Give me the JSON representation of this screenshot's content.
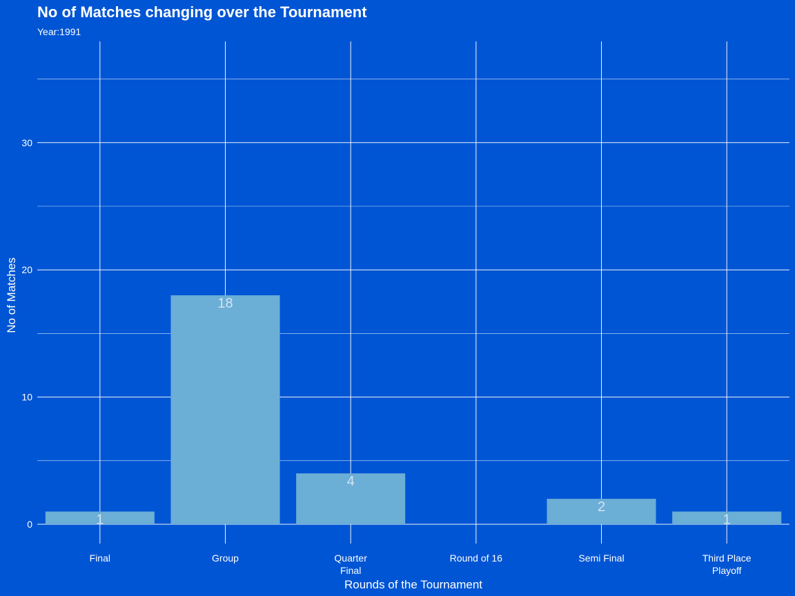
{
  "colors": {
    "background": "#0055D4",
    "bar": "#6BAED6",
    "grid": "#FFFFFF",
    "text": "#FFFFFF",
    "bar_label": "#D6E4F0"
  },
  "chart_data": {
    "type": "bar",
    "title": "No of Matches changing over the Tournament",
    "subtitle": "Year:1991",
    "xlabel": "Rounds of the Tournament",
    "ylabel": "No of Matches",
    "categories": [
      [
        "Final"
      ],
      [
        "Group"
      ],
      [
        "Quarter",
        "Final"
      ],
      [
        "Round of 16"
      ],
      [
        "Semi Final"
      ],
      [
        "Third Place",
        "Playoff"
      ]
    ],
    "values": [
      1,
      18,
      4,
      0,
      2,
      1
    ],
    "data_labels": [
      "1",
      "18",
      "4",
      "",
      "2",
      "1"
    ],
    "yticks": [
      0,
      10,
      20,
      30
    ],
    "ylim": [
      0,
      37
    ],
    "grid": true,
    "legend": "none"
  }
}
